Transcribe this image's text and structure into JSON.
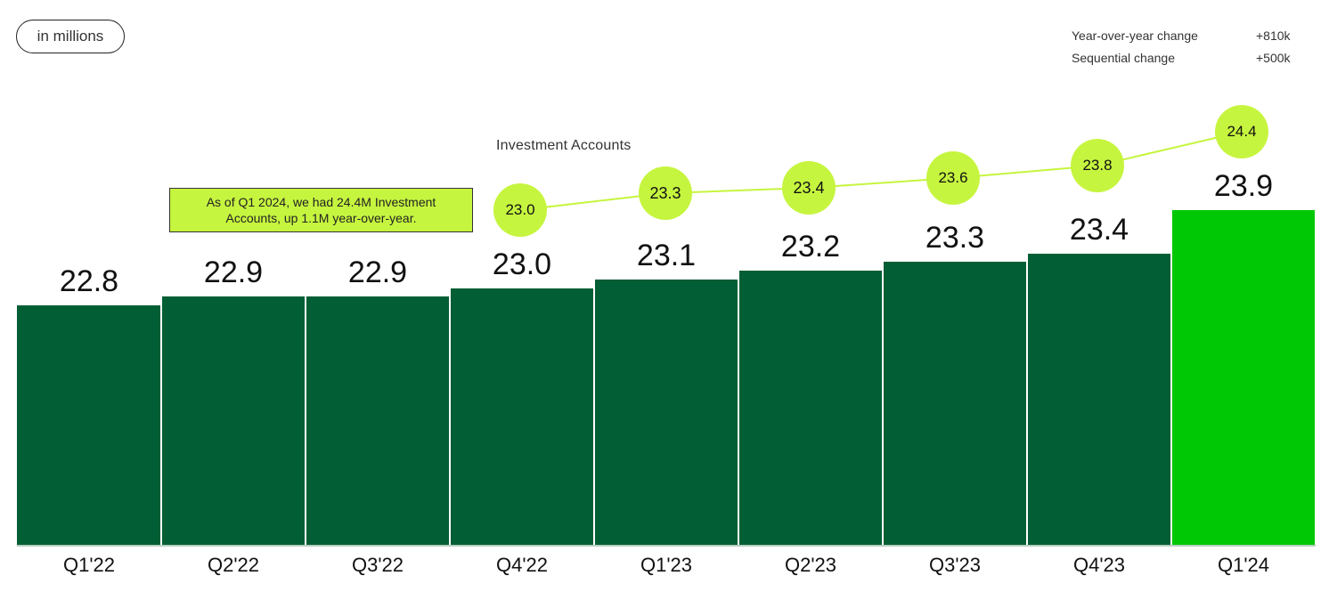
{
  "unit_badge": "in millions",
  "stats": [
    {
      "label": "Year-over-year change",
      "value": "+810k"
    },
    {
      "label": "Sequential change",
      "value": "+500k"
    }
  ],
  "callout": {
    "line1": "As of Q1 2024, we had 24.4M Investment",
    "line2": "Accounts, up 1.1M year-over-year."
  },
  "colors": {
    "bar": "#025e34",
    "bar_highlight": "#00c805",
    "line": "#c6f53f",
    "dot": "#c6f53f"
  },
  "chart_data": {
    "type": "bar",
    "title": "",
    "unit": "in millions",
    "categories": [
      "Q1'22",
      "Q2'22",
      "Q3'22",
      "Q4'22",
      "Q1'23",
      "Q2'23",
      "Q3'23",
      "Q4'23",
      "Q1'24"
    ],
    "series": [
      {
        "name": "Bars",
        "type": "bar",
        "values": [
          22.8,
          22.9,
          22.9,
          23.0,
          23.1,
          23.2,
          23.3,
          23.4,
          23.9
        ],
        "labels": [
          "22.8",
          "22.9",
          "22.9",
          "23.0",
          "23.1",
          "23.2",
          "23.3",
          "23.4",
          "23.9"
        ]
      },
      {
        "name": "Investment Accounts",
        "type": "line",
        "start_index": 3,
        "values": [
          23.0,
          23.3,
          23.4,
          23.6,
          23.8,
          24.4
        ],
        "labels": [
          "23.0",
          "23.3",
          "23.4",
          "23.6",
          "23.8",
          "24.4"
        ]
      }
    ],
    "highlight_index": 8,
    "xlabel": "",
    "ylabel": "",
    "grid": false,
    "legend": "none"
  }
}
